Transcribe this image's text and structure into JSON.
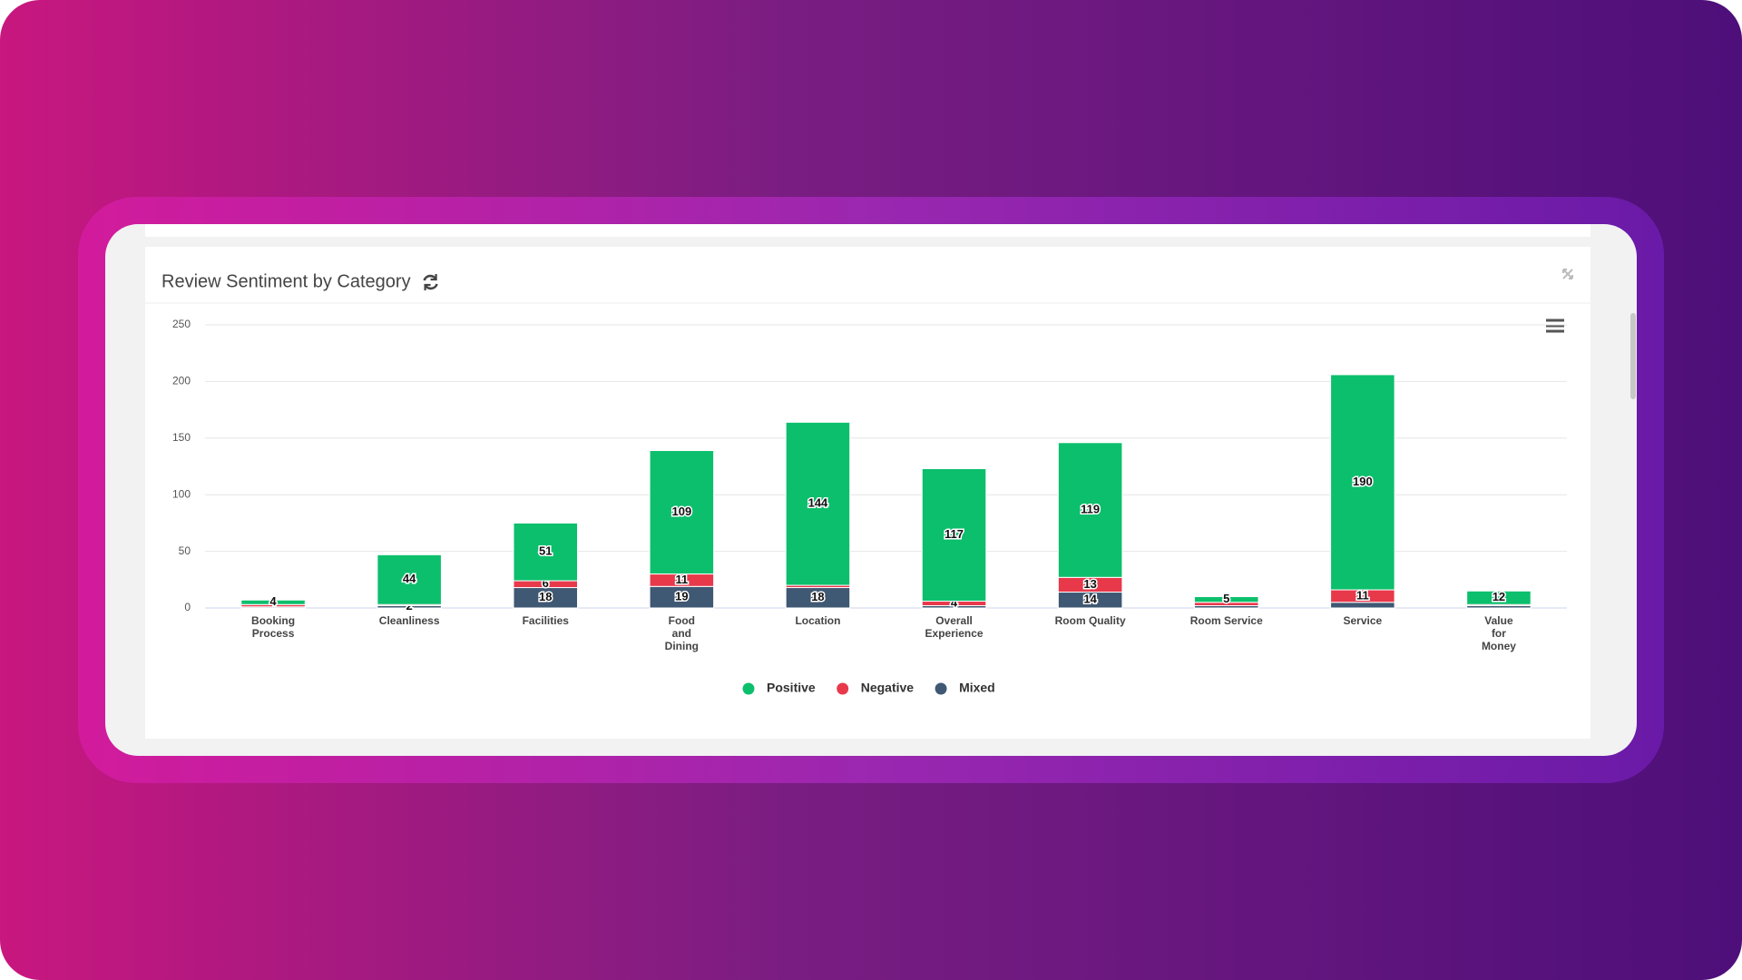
{
  "chart_data": {
    "type": "stacked-bar",
    "title": "Review Sentiment by Category",
    "categories": [
      "Booking\nProcess",
      "Cleanliness",
      "Facilities",
      "Food\nand\nDining",
      "Location",
      "Overall\nExperience",
      "Room Quality",
      "Room Service",
      "Service",
      "Value\nfor\nMoney"
    ],
    "series": [
      {
        "name": "Mixed",
        "color": "#3f5873",
        "values": [
          1,
          2,
          18,
          19,
          18,
          2,
          14,
          2,
          5,
          2
        ],
        "value_labels": [
          null,
          "2",
          "18",
          "19",
          "18",
          null,
          "14",
          null,
          null,
          null
        ]
      },
      {
        "name": "Negative",
        "color": "#e8394b",
        "values": [
          2,
          1,
          6,
          11,
          2,
          4,
          13,
          3,
          11,
          1
        ],
        "value_labels": [
          null,
          null,
          "6",
          "11",
          null,
          "4",
          "13",
          null,
          "11",
          null
        ]
      },
      {
        "name": "Positive",
        "color": "#0cbf6c",
        "values": [
          4,
          44,
          51,
          109,
          144,
          117,
          119,
          5,
          190,
          12
        ],
        "value_labels": [
          "4",
          "44",
          "51",
          "109",
          "144",
          "117",
          "119",
          "5",
          "190",
          "12"
        ]
      }
    ],
    "legend_order": [
      2,
      1,
      0
    ],
    "ylim": [
      0,
      250
    ],
    "yticks": [
      0,
      50,
      100,
      150,
      200,
      250
    ],
    "grid": true
  }
}
